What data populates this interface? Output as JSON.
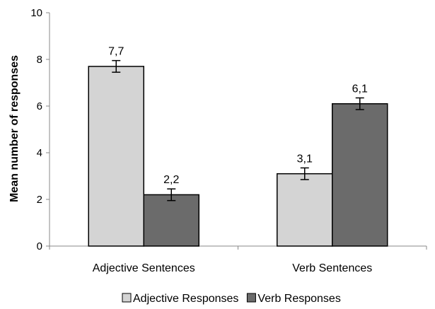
{
  "chart_data": {
    "type": "bar",
    "categories": [
      "Adjective Sentences",
      "Verb Sentences"
    ],
    "series": [
      {
        "name": "Adjective Responses",
        "values": [
          7.7,
          3.1
        ],
        "labels": [
          "7,7",
          "3,1"
        ],
        "error": [
          0.25,
          0.25
        ],
        "color": "#d4d4d4"
      },
      {
        "name": "Verb Responses",
        "values": [
          2.2,
          6.1
        ],
        "labels": [
          "2,2",
          "6,1"
        ],
        "error": [
          0.25,
          0.25
        ],
        "color": "#6b6b6b"
      }
    ],
    "ylabel": "Mean number of responses",
    "xlabel": "",
    "ylim": [
      0,
      10
    ],
    "yticks": [
      0,
      2,
      4,
      6,
      8,
      10
    ],
    "ytick_labels": [
      "0",
      "2",
      "4",
      "6",
      "8",
      "10"
    ],
    "grid": false,
    "legend_position": "bottom"
  }
}
